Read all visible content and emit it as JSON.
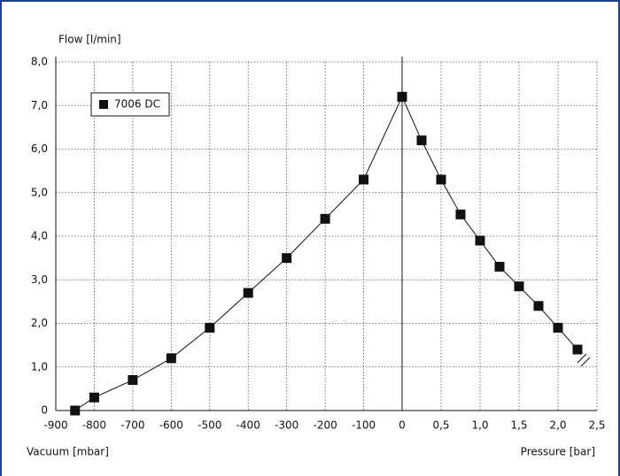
{
  "chart_data": {
    "type": "line",
    "ylabel": "Flow [l/min]",
    "xlabel_vacuum": "Vacuum [mbar]",
    "xlabel_pressure": "Pressure [bar]",
    "ylim": [
      0,
      8
    ],
    "yticks": [
      0,
      {
        "value": 1,
        "label": "1,0"
      },
      {
        "value": 2,
        "label": "2,0"
      },
      {
        "value": 3,
        "label": "3,0"
      },
      {
        "value": 4,
        "label": "4,0"
      },
      {
        "value": 5,
        "label": "5,0"
      },
      {
        "value": 6,
        "label": "6,0"
      },
      {
        "value": 7,
        "label": "7,0"
      },
      {
        "value": 8,
        "label": "8,0"
      }
    ],
    "xlim_vacuum": [
      -900,
      0
    ],
    "xticks_vacuum": [
      -900,
      -800,
      -700,
      -600,
      -500,
      -400,
      -300,
      -200,
      -100,
      0
    ],
    "xlim_pressure": [
      0,
      2.5
    ],
    "xticks_pressure": [
      {
        "value": 0.5,
        "label": "0,5"
      },
      {
        "value": 1,
        "label": "1,0"
      },
      {
        "value": 1.5,
        "label": "1,5"
      },
      {
        "value": 2,
        "label": "2,0"
      },
      {
        "value": 2.5,
        "label": "2,5"
      }
    ],
    "grid": true,
    "legend": "upper-left",
    "series": [
      {
        "name": "7006 DC",
        "color": "#111111",
        "x_vacuum": [
          -850,
          -800,
          -700,
          -600,
          -500,
          -400,
          -300,
          -200,
          -100,
          0
        ],
        "values_vacuum": [
          0,
          0.3,
          0.7,
          1.2,
          1.9,
          2.7,
          3.5,
          4.4,
          5.3,
          7.2
        ],
        "x_pressure": [
          0,
          0.25,
          0.5,
          0.75,
          1,
          1.25,
          1.5,
          1.75,
          2,
          2.25
        ],
        "values_pressure": [
          7.2,
          6.2,
          5.3,
          4.5,
          3.9,
          3.3,
          2.85,
          2.4,
          1.9,
          1.4
        ]
      }
    ]
  }
}
